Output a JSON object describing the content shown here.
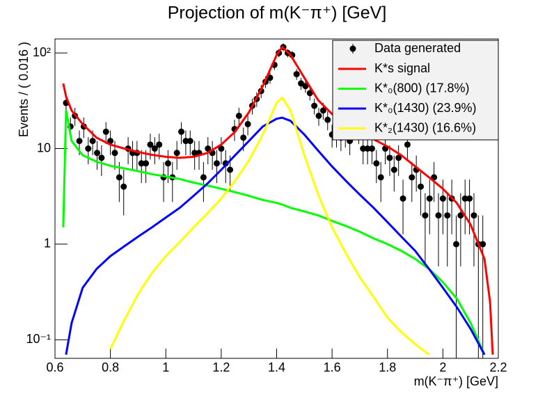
{
  "chart_data": {
    "type": "line",
    "title": "Projection of m(K⁻π⁺) [GeV]",
    "x_label": "m(K⁻π⁺) [GeV]",
    "y_label": "Events / ( 0.016 )",
    "log_y": true,
    "legend": "upper right",
    "xlim": [
      0.6,
      2.2
    ],
    "xticks": [
      0.6,
      0.8,
      {
        "value": 1.0,
        "label": "1"
      },
      1.2,
      1.4,
      1.6,
      1.8,
      {
        "value": 2.0,
        "label": "2"
      },
      2.2
    ],
    "ylim": [
      0.064,
      140
    ],
    "yticks": [
      {
        "value": 0.1,
        "label": "10⁻¹"
      },
      1,
      10,
      {
        "value": 100,
        "label": "10²"
      }
    ],
    "x": [
      0.63,
      0.64,
      0.66,
      0.7,
      0.75,
      0.8,
      0.85,
      0.9,
      0.95,
      1.0,
      1.05,
      1.1,
      1.15,
      1.2,
      1.25,
      1.3,
      1.35,
      1.4,
      1.42,
      1.45,
      1.5,
      1.55,
      1.6,
      1.65,
      1.7,
      1.75,
      1.8,
      1.85,
      1.9,
      1.95,
      2.0,
      2.05,
      2.1,
      2.15,
      2.17,
      2.18
    ],
    "data_points": {
      "name": "Data generated",
      "color": "#000000",
      "x": [
        0.64,
        0.656,
        0.672,
        0.688,
        0.704,
        0.72,
        0.736,
        0.752,
        0.768,
        0.784,
        0.8,
        0.816,
        0.832,
        0.848,
        0.864,
        0.88,
        0.896,
        0.912,
        0.928,
        0.944,
        0.96,
        0.976,
        0.992,
        1.008,
        1.024,
        1.04,
        1.056,
        1.072,
        1.088,
        1.104,
        1.12,
        1.136,
        1.152,
        1.168,
        1.184,
        1.2,
        1.216,
        1.232,
        1.248,
        1.264,
        1.28,
        1.296,
        1.312,
        1.328,
        1.344,
        1.36,
        1.376,
        1.392,
        1.408,
        1.424,
        1.44,
        1.456,
        1.472,
        1.488,
        1.504,
        1.52,
        1.536,
        1.552,
        1.568,
        1.584,
        1.6,
        1.616,
        1.632,
        1.648,
        1.664,
        1.68,
        1.696,
        1.712,
        1.728,
        1.744,
        1.76,
        1.776,
        1.792,
        1.808,
        1.824,
        1.84,
        1.856,
        1.872,
        1.888,
        1.904,
        1.92,
        1.936,
        1.952,
        1.968,
        1.984,
        2.0,
        2.016,
        2.032,
        2.048,
        2.064,
        2.08,
        2.096,
        2.112,
        2.128,
        2.144,
        2.16,
        2.176
      ],
      "values": [
        30,
        17,
        22,
        12,
        17,
        10,
        12,
        9,
        8,
        15,
        12,
        9,
        5,
        4,
        10,
        9,
        9,
        7,
        7,
        11,
        10,
        11,
        5,
        7,
        5,
        9,
        15,
        12,
        12,
        9,
        9,
        5,
        10,
        9,
        7,
        10,
        7,
        6,
        16,
        22,
        13,
        18,
        28,
        33,
        40,
        50,
        55,
        75,
        100,
        115,
        100,
        95,
        60,
        48,
        45,
        38,
        28,
        22,
        25,
        20,
        14,
        14,
        13,
        14,
        12,
        18,
        15,
        10,
        10,
        10,
        7,
        5,
        10,
        8,
        6,
        8,
        3,
        11,
        5,
        6,
        4,
        2,
        3,
        5,
        2,
        3,
        2,
        3,
        1,
        2,
        3,
        3,
        2,
        1,
        1,
        null,
        null
      ]
    },
    "series": [
      {
        "name": "K*s signal",
        "color": "#ff0000",
        "values": [
          48,
          35,
          25,
          18,
          13,
          11,
          10,
          9.2,
          8.6,
          8.2,
          8.0,
          8.2,
          9,
          11,
          15,
          24,
          45,
          95,
          115,
          95,
          55,
          32,
          23,
          18,
          15,
          12.5,
          10.5,
          8.5,
          6.5,
          5,
          3.8,
          2.7,
          1.6,
          0.7,
          0.25,
          0.07
        ]
      },
      {
        "name": "K*₀(800) (17.8%)",
        "color": "#00ff00",
        "values": [
          1.5,
          25,
          12,
          8.5,
          7.3,
          6.6,
          6.2,
          5.8,
          5.4,
          5.1,
          4.8,
          4.4,
          4.1,
          3.8,
          3.5,
          3.2,
          2.9,
          2.7,
          2.6,
          2.4,
          2.2,
          2.0,
          1.75,
          1.55,
          1.35,
          1.15,
          1.0,
          0.85,
          0.7,
          0.55,
          0.4,
          0.27,
          0.15,
          0.07,
          null,
          null
        ]
      },
      {
        "name": "K*₀(1430) (23.9%)",
        "color": "#0000ff",
        "values": [
          null,
          0.07,
          0.15,
          0.35,
          0.55,
          0.75,
          0.95,
          1.2,
          1.5,
          1.9,
          2.4,
          3.2,
          4.3,
          6,
          8.5,
          12,
          17,
          20.5,
          21,
          19.5,
          14,
          9.5,
          6.5,
          4.6,
          3.3,
          2.4,
          1.7,
          1.2,
          0.85,
          0.55,
          0.35,
          0.22,
          0.13,
          0.07,
          null,
          null
        ]
      },
      {
        "name": "K*₂(1430) (16.6%)",
        "color": "#ffff00",
        "values": [
          null,
          null,
          null,
          null,
          null,
          0.08,
          0.16,
          0.3,
          0.5,
          0.75,
          1.05,
          1.5,
          2.1,
          3.0,
          4.6,
          7.5,
          14,
          30,
          34,
          25,
          8.5,
          3.3,
          1.5,
          0.8,
          0.45,
          0.28,
          0.17,
          0.12,
          0.09,
          0.07,
          null,
          null,
          null,
          null,
          null,
          null
        ]
      }
    ]
  }
}
